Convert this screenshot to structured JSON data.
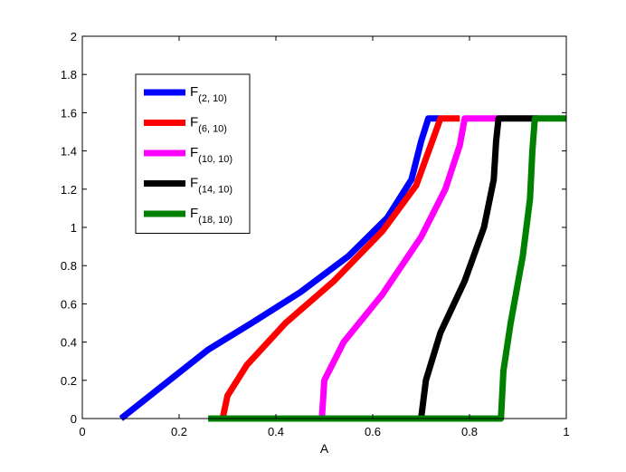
{
  "chart_data": {
    "type": "line",
    "title": "",
    "xlabel": "A",
    "ylabel": "",
    "xlim": [
      0,
      1
    ],
    "ylim": [
      0,
      2
    ],
    "x_ticks": [
      0,
      0.2,
      0.4,
      0.6,
      0.8,
      1
    ],
    "x_tick_labels": [
      "0",
      "0.2",
      "0.4",
      "0.6",
      "0.8",
      "1"
    ],
    "y_ticks": [
      0,
      0.2,
      0.4,
      0.6,
      0.8,
      1,
      1.2,
      1.4,
      1.6,
      1.8,
      2
    ],
    "y_tick_labels": [
      "0",
      "0.2",
      "0.4",
      "0.6",
      "0.8",
      "1",
      "1.2",
      "1.4",
      "1.6",
      "1.8",
      "2"
    ],
    "grid": false,
    "legend_position": "top-left",
    "series": [
      {
        "name": "F",
        "subscript": "(2, 10)",
        "color": "#0000ff",
        "points": [
          [
            0.08,
            0
          ],
          [
            0.17,
            0.18
          ],
          [
            0.26,
            0.36
          ],
          [
            0.35,
            0.5
          ],
          [
            0.45,
            0.66
          ],
          [
            0.55,
            0.85
          ],
          [
            0.63,
            1.05
          ],
          [
            0.68,
            1.25
          ],
          [
            0.7,
            1.45
          ],
          [
            0.715,
            1.57
          ],
          [
            0.74,
            1.57
          ]
        ]
      },
      {
        "name": "F",
        "subscript": "(6, 10)",
        "color": "#ff0000",
        "points": [
          [
            0.29,
            0
          ],
          [
            0.3,
            0.12
          ],
          [
            0.34,
            0.28
          ],
          [
            0.42,
            0.5
          ],
          [
            0.52,
            0.72
          ],
          [
            0.62,
            0.98
          ],
          [
            0.69,
            1.22
          ],
          [
            0.72,
            1.43
          ],
          [
            0.74,
            1.57
          ],
          [
            0.78,
            1.57
          ]
        ]
      },
      {
        "name": "F",
        "subscript": "(10, 10)",
        "color": "#ff00ff",
        "points": [
          [
            0.495,
            0
          ],
          [
            0.5,
            0.2
          ],
          [
            0.54,
            0.4
          ],
          [
            0.62,
            0.65
          ],
          [
            0.7,
            0.95
          ],
          [
            0.75,
            1.2
          ],
          [
            0.78,
            1.43
          ],
          [
            0.79,
            1.57
          ],
          [
            0.86,
            1.57
          ]
        ]
      },
      {
        "name": "F",
        "subscript": "(14, 10)",
        "color": "#000000",
        "points": [
          [
            0.7,
            0
          ],
          [
            0.71,
            0.2
          ],
          [
            0.74,
            0.45
          ],
          [
            0.79,
            0.72
          ],
          [
            0.83,
            1.0
          ],
          [
            0.85,
            1.25
          ],
          [
            0.855,
            1.45
          ],
          [
            0.86,
            1.57
          ],
          [
            0.94,
            1.57
          ]
        ]
      },
      {
        "name": "F",
        "subscript": "(18, 10)",
        "color": "#008000",
        "points": [
          [
            0.26,
            0
          ],
          [
            0.865,
            0
          ],
          [
            0.87,
            0.25
          ],
          [
            0.885,
            0.5
          ],
          [
            0.91,
            0.85
          ],
          [
            0.925,
            1.15
          ],
          [
            0.93,
            1.4
          ],
          [
            0.935,
            1.57
          ],
          [
            1.0,
            1.57
          ]
        ]
      }
    ]
  }
}
